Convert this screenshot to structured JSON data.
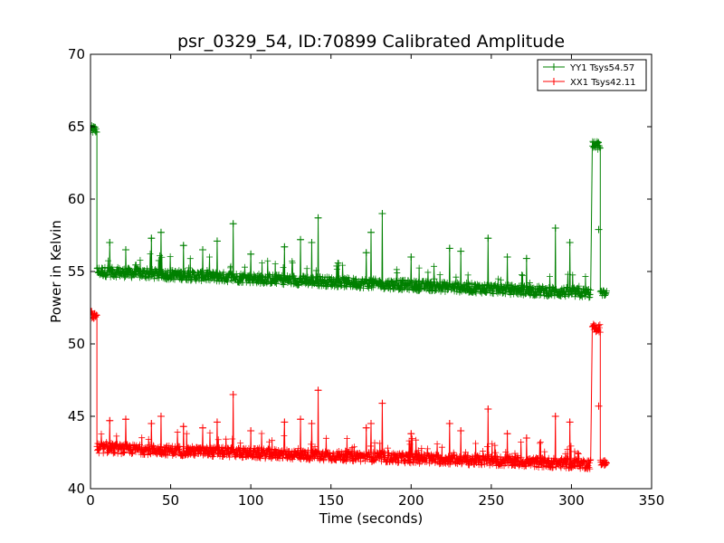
{
  "chart_data": {
    "type": "line",
    "title": "psr_0329_54, ID:70899 Calibrated Amplitude",
    "xlabel": "Time (seconds)",
    "ylabel": "Power in Kelvin",
    "xlim": [
      0,
      350
    ],
    "ylim": [
      40,
      70
    ],
    "xticks": [
      "0",
      "50",
      "100",
      "150",
      "200",
      "250",
      "300",
      "350"
    ],
    "yticks": [
      "40",
      "45",
      "50",
      "55",
      "60",
      "65",
      "70"
    ],
    "grid": false,
    "legend_position": "top-right",
    "series": [
      {
        "name": "YY1 Tsys54.57",
        "color": "#008000",
        "marker": "+",
        "start_segment": {
          "x_range": [
            0,
            4
          ],
          "level": 64.8
        },
        "baseline": {
          "x_start": 4,
          "x_end": 312,
          "y_start": 55.0,
          "y_end": 53.5
        },
        "end_segment": {
          "x_range": [
            313,
            318
          ],
          "level": 63.7
        },
        "tail": {
          "x_range": [
            318,
            322
          ],
          "level": 53.5
        },
        "spikes": [
          [
            12,
            57.0
          ],
          [
            22,
            56.5
          ],
          [
            38,
            57.3
          ],
          [
            44,
            57.7
          ],
          [
            58,
            56.8
          ],
          [
            70,
            56.5
          ],
          [
            79,
            57.1
          ],
          [
            89,
            58.3
          ],
          [
            100,
            56.2
          ],
          [
            121,
            56.7
          ],
          [
            131,
            57.2
          ],
          [
            138,
            57.0
          ],
          [
            142,
            58.7
          ],
          [
            172,
            56.3
          ],
          [
            175,
            57.7
          ],
          [
            182,
            59.0
          ],
          [
            200,
            56.0
          ],
          [
            224,
            56.6
          ],
          [
            231,
            56.4
          ],
          [
            248,
            57.3
          ],
          [
            260,
            56.0
          ],
          [
            272,
            55.9
          ],
          [
            290,
            58.0
          ],
          [
            299,
            57.0
          ],
          [
            317,
            57.9
          ]
        ]
      },
      {
        "name": "XX1 Tsys42.11",
        "color": "#ff0000",
        "marker": "+",
        "start_segment": {
          "x_range": [
            0,
            4
          ],
          "level": 52.0
        },
        "baseline": {
          "x_start": 4,
          "x_end": 312,
          "y_start": 42.8,
          "y_end": 41.7
        },
        "end_segment": {
          "x_range": [
            313,
            318
          ],
          "level": 51.1
        },
        "tail": {
          "x_range": [
            318,
            322
          ],
          "level": 41.8
        },
        "spikes": [
          [
            12,
            44.7
          ],
          [
            22,
            44.8
          ],
          [
            38,
            44.5
          ],
          [
            44,
            45.0
          ],
          [
            58,
            44.3
          ],
          [
            70,
            44.2
          ],
          [
            79,
            44.6
          ],
          [
            89,
            46.5
          ],
          [
            100,
            44.0
          ],
          [
            121,
            44.6
          ],
          [
            131,
            44.8
          ],
          [
            138,
            44.5
          ],
          [
            142,
            46.8
          ],
          [
            172,
            44.2
          ],
          [
            175,
            44.5
          ],
          [
            182,
            45.9
          ],
          [
            200,
            43.8
          ],
          [
            224,
            44.5
          ],
          [
            231,
            44.0
          ],
          [
            248,
            45.5
          ],
          [
            260,
            43.8
          ],
          [
            272,
            43.5
          ],
          [
            290,
            45.0
          ],
          [
            299,
            44.6
          ],
          [
            317,
            45.7
          ]
        ]
      }
    ]
  }
}
